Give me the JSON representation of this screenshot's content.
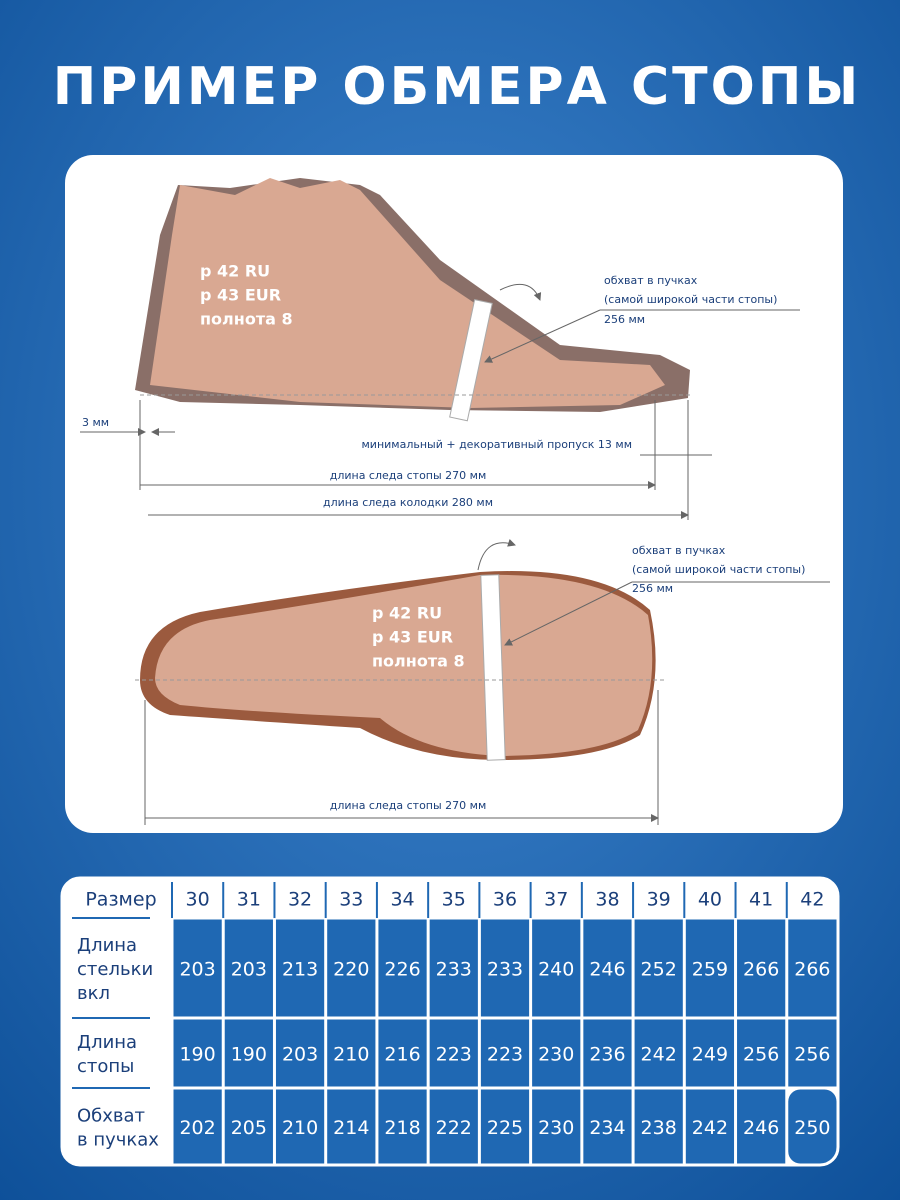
{
  "title": "ПРИМЕР ОБМЕРА СТОПЫ",
  "side_view": {
    "size_labels": [
      "р 42 RU",
      "р 43 EUR",
      "полнота 8"
    ],
    "girth": [
      "обхват в пучках",
      "(самой широкой части стопы)",
      "256 мм"
    ],
    "gap": "3 мм",
    "allowance": "минимальный + декоративный пропуск 13 мм",
    "foot_length": "длина следа стопы 270 мм",
    "last_length": "длина следа колодки 280 мм"
  },
  "sole_view": {
    "size_labels": [
      "р 42 RU",
      "р 43 EUR",
      "полнота 8"
    ],
    "girth": [
      "обхват в пучках",
      "(самой широкой части стопы)",
      "256 мм"
    ],
    "foot_length": "длина следа стопы 270 мм"
  },
  "table": {
    "header": "Размер",
    "sizes": [
      30,
      31,
      32,
      33,
      34,
      35,
      36,
      37,
      38,
      39,
      40,
      41,
      42
    ],
    "rows": [
      {
        "label": [
          "Длина",
          "стельки",
          "вкл"
        ],
        "values": [
          203,
          203,
          213,
          220,
          226,
          233,
          233,
          240,
          246,
          252,
          259,
          266,
          266
        ]
      },
      {
        "label": [
          "Длина",
          "стопы"
        ],
        "values": [
          190,
          190,
          203,
          210,
          216,
          223,
          223,
          230,
          236,
          242,
          249,
          256,
          256
        ]
      },
      {
        "label": [
          "Обхват",
          "в пучках"
        ],
        "values": [
          202,
          205,
          210,
          214,
          218,
          222,
          225,
          230,
          234,
          238,
          242,
          246,
          250
        ]
      }
    ]
  }
}
